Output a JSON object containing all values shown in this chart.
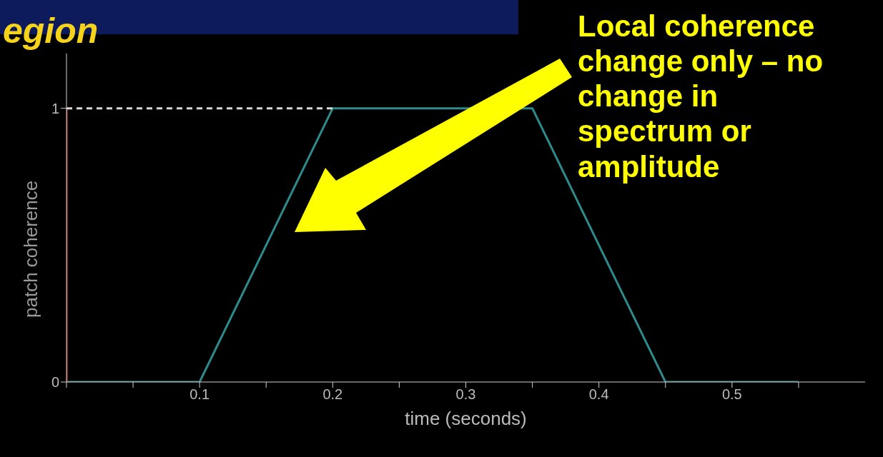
{
  "chart_data": {
    "type": "line",
    "title": "egion",
    "xlabel": "time (seconds)",
    "ylabel": "patch coherence",
    "annotations": [
      "Local coherence change only – no change in spectrum or amplitude"
    ],
    "xlim": [
      0,
      0.6
    ],
    "ylim": [
      0,
      1.2
    ],
    "xticks": [
      {
        "value": 0,
        "label": null
      },
      {
        "value": 0.05,
        "label": null
      },
      0.1,
      {
        "value": 0.15,
        "label": null
      },
      0.2,
      {
        "value": 0.25,
        "label": null
      },
      0.3,
      {
        "value": 0.35,
        "label": null
      },
      0.4,
      {
        "value": 0.45,
        "label": null
      },
      0.5,
      {
        "value": 0.55,
        "label": null
      }
    ],
    "yticks": [
      0,
      1
    ],
    "grid": false,
    "marker": "none",
    "legend": false,
    "series": [
      {
        "color": "#2e8b8b",
        "x": [
          0,
          0.1,
          0.2,
          0.35,
          0.45,
          0.55
        ],
        "values": [
          0,
          0,
          1,
          1,
          0,
          0
        ],
        "line_style": "solid"
      },
      {
        "color": "#c0392b",
        "x": [
          0,
          0
        ],
        "values": [
          0,
          1
        ],
        "line_style": "solid"
      },
      {
        "color": "#d8d8d8",
        "x": [
          0,
          0.2
        ],
        "values": [
          1,
          1
        ],
        "line_style": "dashed"
      }
    ]
  }
}
